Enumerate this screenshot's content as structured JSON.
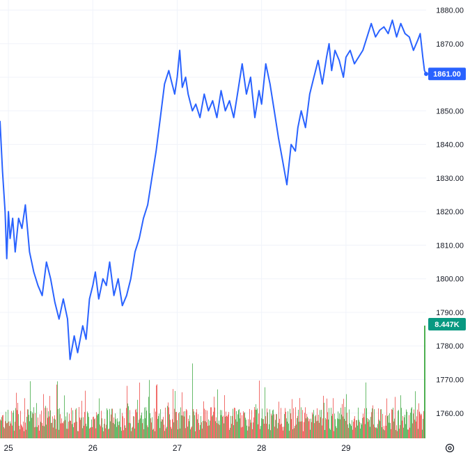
{
  "chart_data": {
    "type": "line",
    "x_tick_labels": [
      "25",
      "26",
      "27",
      "28",
      "29"
    ],
    "y_tick_labels": [
      "1880.00",
      "1870.00",
      "1860.00",
      "1850.00",
      "1840.00",
      "1830.00",
      "1820.00",
      "1810.00",
      "1800.00",
      "1790.00",
      "1780.00",
      "1770.00",
      "1760.00"
    ],
    "ylim": [
      1752.5,
      1883
    ],
    "xlim": [
      24.9,
      29.95
    ],
    "grid": true,
    "price_series": {
      "color": "#2962ff",
      "x": [
        24.9,
        24.93,
        24.96,
        24.98,
        25.0,
        25.02,
        25.05,
        25.08,
        25.12,
        25.16,
        25.2,
        25.25,
        25.3,
        25.35,
        25.4,
        25.45,
        25.5,
        25.55,
        25.6,
        25.65,
        25.7,
        25.73,
        25.78,
        25.82,
        25.88,
        25.92,
        25.96,
        26.0,
        26.03,
        26.07,
        26.12,
        26.16,
        26.2,
        26.25,
        26.3,
        26.35,
        26.4,
        26.45,
        26.5,
        26.55,
        26.6,
        26.65,
        26.7,
        26.75,
        26.8,
        26.85,
        26.9,
        26.94,
        26.97,
        27.0,
        27.03,
        27.06,
        27.1,
        27.13,
        27.18,
        27.22,
        27.27,
        27.32,
        27.37,
        27.42,
        27.47,
        27.52,
        27.57,
        27.62,
        27.67,
        27.72,
        27.77,
        27.82,
        27.87,
        27.92,
        27.97,
        28.0,
        28.05,
        28.1,
        28.15,
        28.2,
        28.25,
        28.3,
        28.35,
        28.4,
        28.43,
        28.47,
        28.52,
        28.57,
        28.62,
        28.67,
        28.72,
        28.77,
        28.8,
        28.83,
        28.87,
        28.92,
        28.97,
        29.0,
        29.05,
        29.1,
        29.15,
        29.2,
        29.25,
        29.3,
        29.35,
        29.4,
        29.45,
        29.5,
        29.55,
        29.6,
        29.65,
        29.7,
        29.75,
        29.8,
        29.85,
        29.88,
        29.91,
        29.93,
        29.95
      ],
      "y": [
        1847,
        1832,
        1820,
        1806,
        1820,
        1812,
        1818,
        1808,
        1818,
        1815,
        1822,
        1808,
        1802,
        1798,
        1795,
        1805,
        1800,
        1793,
        1788,
        1794,
        1788,
        1776,
        1783,
        1778,
        1786,
        1782,
        1794,
        1798,
        1802,
        1794,
        1800,
        1798,
        1805,
        1795,
        1800,
        1792,
        1795,
        1800,
        1808,
        1812,
        1818,
        1822,
        1830,
        1838,
        1848,
        1858,
        1862,
        1858,
        1855,
        1860,
        1868,
        1857,
        1860,
        1855,
        1850,
        1852,
        1848,
        1855,
        1850,
        1853,
        1848,
        1856,
        1850,
        1853,
        1848,
        1856,
        1864,
        1855,
        1860,
        1848,
        1856,
        1852,
        1864,
        1858,
        1850,
        1842,
        1835,
        1828,
        1840,
        1838,
        1845,
        1850,
        1845,
        1855,
        1860,
        1865,
        1858,
        1866,
        1870,
        1862,
        1868,
        1865,
        1860,
        1866,
        1868,
        1864,
        1866,
        1868,
        1872,
        1876,
        1872,
        1874,
        1875,
        1873,
        1877,
        1872,
        1876,
        1873,
        1872,
        1868,
        1871,
        1873,
        1866,
        1862,
        1861
      ]
    },
    "last_price_label": "1861.00",
    "last_price_color": "#2962ff",
    "volume_label": "8.447K",
    "volume_label_color": "#089981",
    "volume": {
      "up_color": "#4caf50",
      "down_color": "#ef5350",
      "max_label_value": 8.447
    }
  },
  "settings_icon": "gear-icon"
}
